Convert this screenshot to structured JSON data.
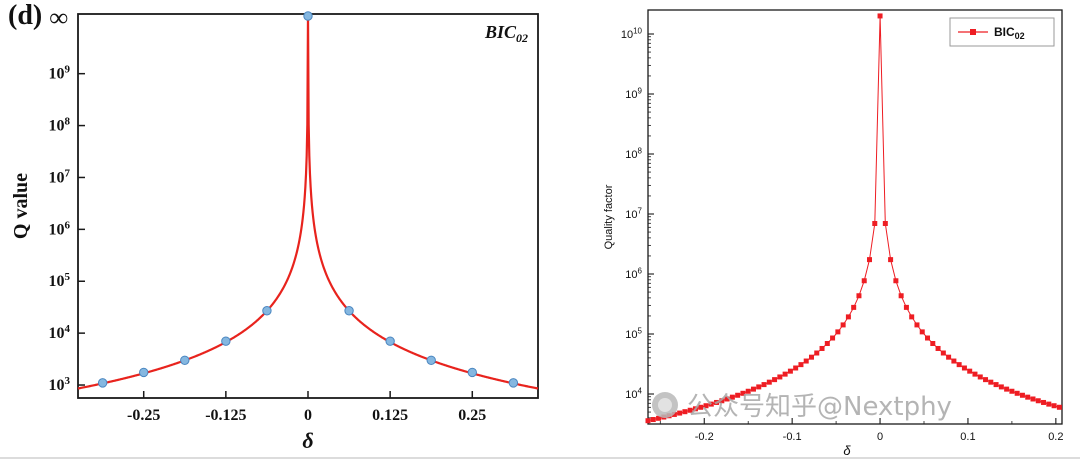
{
  "page": {
    "background": "#ffffff"
  },
  "watermark": {
    "icon": "paw-logo",
    "text": "公众号知乎@Nextphy",
    "color": "#a8a8a8"
  },
  "chart_data": [
    {
      "id": "left-q-value-plot",
      "type": "line",
      "panel_label": "(d)",
      "annotation": {
        "text": "BIC",
        "sub": "02"
      },
      "title": "",
      "xlabel": "δ",
      "ylabel": "Q value",
      "x_ticks": [
        -0.25,
        -0.125,
        0,
        0.125,
        0.25
      ],
      "x_tick_labels": [
        "-0.25",
        "-0.125",
        "0",
        "0.125",
        "0.25"
      ],
      "xlim": [
        -0.35,
        0.35
      ],
      "y_scale": "log",
      "y_decades": [
        3,
        4,
        5,
        6,
        7,
        8,
        9
      ],
      "y_top_label": "∞",
      "ylog_lim": [
        2.75,
        10.15
      ],
      "grid": false,
      "curve": {
        "model": "C_over_delta_sq",
        "C": 105,
        "color": "#e8231d",
        "width": 2.2
      },
      "scatter": {
        "x": [
          -0.3125,
          -0.25,
          -0.1875,
          -0.125,
          -0.0625,
          0,
          0.0625,
          0.125,
          0.1875,
          0.25,
          0.3125
        ],
        "q": [
          1100,
          1750,
          3000,
          7000,
          27000,
          null,
          27000,
          7000,
          3000,
          1750,
          1100
        ],
        "note_null_means": "infinity at delta = 0",
        "color": "#85b7e0",
        "edge": "#4a86c0"
      },
      "frame_color": "#1a1a1a"
    },
    {
      "id": "right-quality-factor-plot",
      "type": "scatter-line",
      "legend": {
        "text": "BIC",
        "sub": "02",
        "position": "top-right"
      },
      "title": "",
      "xlabel": "δ",
      "ylabel": "Quality factor",
      "x_ticks": [
        -0.2,
        -0.1,
        0,
        0.1,
        0.2
      ],
      "x_tick_labels": [
        "-0.2",
        "-0.1",
        "0",
        "0.1",
        "0.2"
      ],
      "x_minor_ticks": [
        -0.25,
        -0.15,
        -0.05,
        0.05,
        0.15
      ],
      "xlim": [
        -0.264,
        0.207
      ],
      "y_scale": "log",
      "y_decades": [
        4,
        5,
        6,
        7,
        8,
        9,
        10
      ],
      "ylog_lim": [
        3.5,
        10.4
      ],
      "grid": false,
      "series": {
        "model": "C_over_delta_sq",
        "C": 250,
        "cap": 20000000000,
        "step": 0.006,
        "color": "#ee1d23",
        "marker": "square",
        "marker_size": 5
      },
      "frame_color": "#1a1a1a"
    }
  ]
}
